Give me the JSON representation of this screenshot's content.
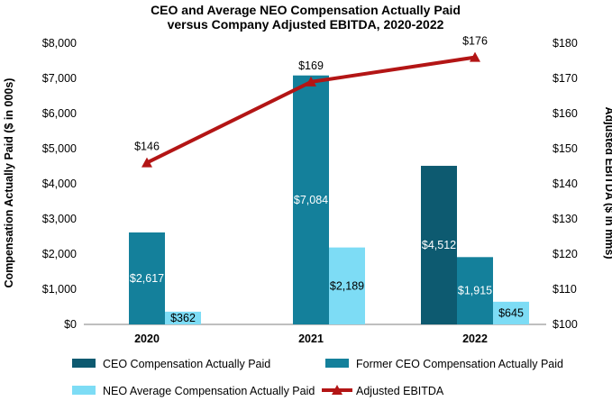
{
  "chart_data": {
    "type": "bar",
    "title_line1": "CEO and Average NEO Compensation Actually Paid",
    "title_line2": "versus Company Adjusted EBITDA, 2020-2022",
    "categories": [
      "2020",
      "2021",
      "2022"
    ],
    "ylabel": "Compensation Actually Paid ($ in 000s)",
    "y2label": "Adjusted EBITDA ($ in mms)",
    "ylim": [
      0,
      8000
    ],
    "y2lim": [
      100,
      180
    ],
    "yticks": [
      "$0",
      "$1,000",
      "$2,000",
      "$3,000",
      "$4,000",
      "$5,000",
      "$6,000",
      "$7,000",
      "$8,000"
    ],
    "y2ticks": [
      "$100",
      "$110",
      "$120",
      "$130",
      "$140",
      "$150",
      "$160",
      "$170",
      "$180"
    ],
    "series": [
      {
        "name": "CEO Compensation Actually Paid",
        "kind": "bar",
        "color": "#0d5a70",
        "values": [
          null,
          null,
          4512
        ],
        "labels": [
          "",
          "",
          "$4,512"
        ],
        "label_color": "#ffffff"
      },
      {
        "name": "Former CEO Compensation Actually Paid",
        "kind": "bar",
        "color": "#14809b",
        "values": [
          2617,
          7084,
          1915
        ],
        "labels": [
          "$2,617",
          "$7,084",
          "$1,915"
        ],
        "label_color": "#ffffff"
      },
      {
        "name": "NEO Average Compensation Actually Paid",
        "kind": "bar",
        "color": "#7ddcf5",
        "values": [
          362,
          2189,
          645
        ],
        "labels": [
          "$362",
          "$2,189",
          "$645"
        ],
        "label_color": "#000000"
      },
      {
        "name": "Adjusted EBITDA",
        "kind": "line",
        "axis": "secondary",
        "color": "#b31515",
        "values": [
          146,
          169,
          176
        ],
        "labels": [
          "$146",
          "$169",
          "$176"
        ],
        "label_color": "#000000"
      }
    ]
  }
}
